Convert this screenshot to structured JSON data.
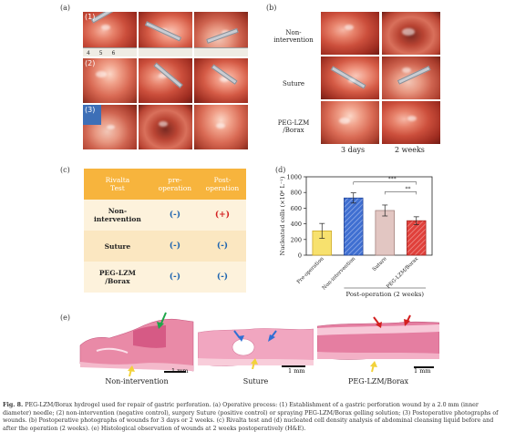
{
  "panel_labels": {
    "a": "(a)",
    "b": "(b)",
    "c": "(c)",
    "d": "(d)",
    "e": "(e)"
  },
  "panel_a": {
    "row_tags": [
      "(1)",
      "(2)",
      "(3)"
    ],
    "ruler_text": "4  5  6"
  },
  "panel_b": {
    "rows": [
      "Non-intervention",
      "Suture",
      "PEG-LZM /Borax"
    ],
    "row_lines": [
      [
        "Non-",
        "intervention"
      ],
      [
        "Suture"
      ],
      [
        "PEG-LZM",
        "/Borax"
      ]
    ],
    "columns": [
      "3 days",
      "2 weeks"
    ]
  },
  "panel_c": {
    "header": [
      "Rivalta Test",
      "pre-operation",
      "Post-operation"
    ],
    "header_lines": [
      [
        "Rivalta",
        "Test"
      ],
      [
        "pre-",
        "operation"
      ],
      [
        "Post-",
        "operation"
      ]
    ],
    "rows": [
      {
        "name_lines": [
          "Non-",
          "intervention"
        ],
        "pre": "(-)",
        "post": "(+)"
      },
      {
        "name_lines": [
          "Suture"
        ],
        "pre": "(-)",
        "post": "(-)"
      },
      {
        "name_lines": [
          "PEG-LZM",
          "/Borax"
        ],
        "pre": "(-)",
        "post": "(-)"
      }
    ]
  },
  "chart_data": {
    "type": "bar",
    "categories": [
      "Pre-operation",
      "Non-intervention",
      "Suture",
      "PEG-LZM/Borax"
    ],
    "values": [
      310,
      730,
      570,
      440
    ],
    "errors": [
      95,
      65,
      70,
      50
    ],
    "ylabel": "Nucleated cells (×10⁶ L⁻¹)",
    "xlabel": "Post-operation (2 weeks)",
    "ylim": [
      0,
      1000
    ],
    "yticks": [
      0,
      200,
      400,
      600,
      800,
      1000
    ],
    "colors": [
      "#f7e16e",
      "#3f6fd1",
      "#e2c6c2",
      "#e0403b"
    ],
    "significance": [
      {
        "from": 1,
        "to": 3,
        "label": "***"
      },
      {
        "from": 2,
        "to": 3,
        "label": "**"
      }
    ]
  },
  "panel_e": {
    "labels": [
      "Non-intervention",
      "Suture",
      "PEG-LZM/Borax"
    ],
    "scale_text": "1 mm"
  },
  "caption": {
    "lead": "Fig. 8.",
    "text": " PEG-LZM/Borax hydrogel used for repair of gastric perforation. (a) Operative process: (1) Establishment of a gastric perforation wound by a 2.0 mm (inner diameter) needle; (2) non-intervention (negative control), surgery Suture (positive control) or spraying PEG-LZM/Borax gelling solution; (3) Postoperative photographs of wounds. (b) Postoperative photographs of wounds for 3 days or 2 weeks. (c) Rivalta test and (d) nucleated cell density analysis of abdominal cleansing liquid before and after the operation (2 weeks). (e) Histological observation of wounds at 2 weeks postoperatively (H&E)."
  }
}
